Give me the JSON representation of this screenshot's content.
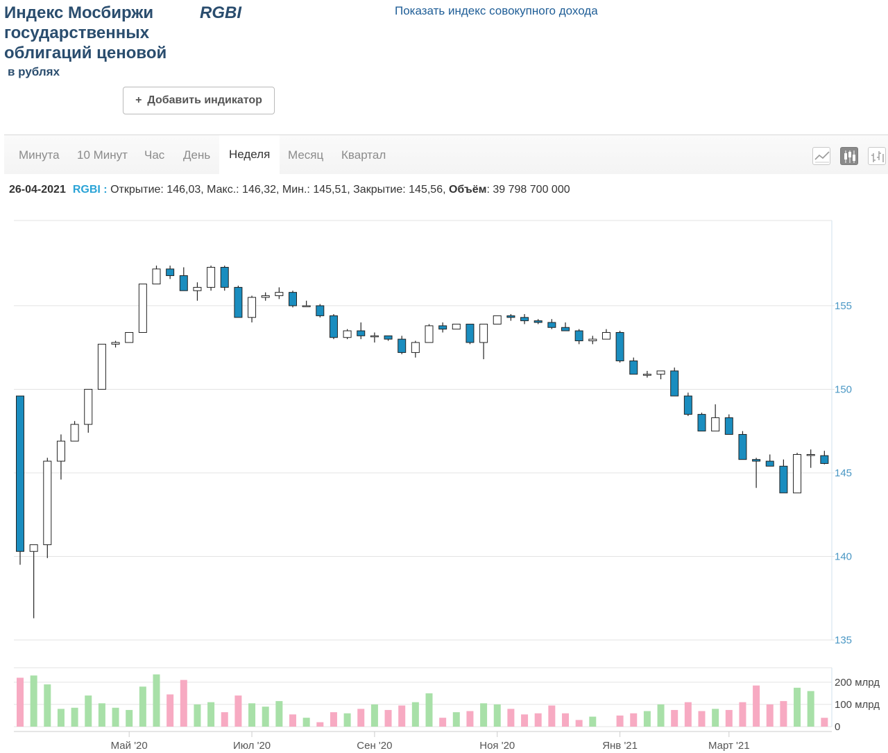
{
  "header": {
    "title": "Индекс Мосбиржи государственных облигаций ценовой",
    "ticker": "RGBI",
    "subtitle": "в рублях",
    "total_return_link": "Показать индекс совокупного дохода",
    "add_indicator_label": "Добавить индикатор"
  },
  "tabs": [
    "Минута",
    "10 Минут",
    "Час",
    "День",
    "Неделя",
    "Месяц",
    "Квартал"
  ],
  "active_tab": "Неделя",
  "chart_types": [
    "line-chart-icon",
    "candlestick-chart-icon",
    "ohlc-bar-chart-icon"
  ],
  "active_chart_type": "candlestick-chart-icon",
  "info": {
    "date": "26-04-2021",
    "symbol": "RGBI :",
    "text": " Открытие: 146,03, Макс.: 146,32, Мин.: 145,51, Закрытие: 145,56, ",
    "volume_label": "Объём",
    "volume_value": ": 39 798 700 000"
  },
  "colors": {
    "down_fill": "#1a8dbf",
    "up_fill": "#ffffff",
    "candle_stroke": "#222222",
    "vol_up": "#a8e0a8",
    "vol_down": "#f7aac2",
    "grid": "#e3e3e3",
    "axis_label": "#4a97c4"
  },
  "chart_data": {
    "type": "candlestick",
    "title": "",
    "interval": "week",
    "y_axis": {
      "ticks": [
        135,
        140,
        145,
        150,
        155
      ],
      "range": [
        135,
        160.1
      ]
    },
    "volume_axis": {
      "ticks": [
        0,
        100,
        200
      ],
      "tick_labels": [
        "0",
        "100 млрд",
        "200 млрд"
      ],
      "unit": "млрд",
      "range": [
        0,
        265
      ]
    },
    "x_axis": {
      "tick_labels": [
        "Май '20",
        "Июл '20",
        "Сен '20",
        "Ноя '20",
        "Янв '21",
        "Март '21"
      ],
      "tick_candle_index": [
        8,
        17,
        26,
        35,
        44,
        52
      ]
    },
    "candles": [
      {
        "o": 149.6,
        "h": 149.6,
        "l": 139.5,
        "c": 140.3,
        "v": 220
      },
      {
        "o": 140.3,
        "h": 140.7,
        "l": 136.3,
        "c": 140.7,
        "v": 230
      },
      {
        "o": 140.7,
        "h": 145.9,
        "l": 139.9,
        "c": 145.7,
        "v": 190
      },
      {
        "o": 145.7,
        "h": 147.3,
        "l": 144.6,
        "c": 146.9,
        "v": 80
      },
      {
        "o": 146.9,
        "h": 148.1,
        "l": 146.9,
        "c": 147.9,
        "v": 85
      },
      {
        "o": 147.9,
        "h": 150.0,
        "l": 147.4,
        "c": 150.0,
        "v": 140
      },
      {
        "o": 150.0,
        "h": 152.7,
        "l": 150.0,
        "c": 152.7,
        "v": 105
      },
      {
        "o": 152.7,
        "h": 152.9,
        "l": 152.5,
        "c": 152.8,
        "v": 85
      },
      {
        "o": 152.8,
        "h": 153.4,
        "l": 152.8,
        "c": 153.4,
        "v": 75
      },
      {
        "o": 153.4,
        "h": 156.3,
        "l": 153.4,
        "c": 156.3,
        "v": 180
      },
      {
        "o": 156.3,
        "h": 157.4,
        "l": 156.3,
        "c": 157.2,
        "v": 235
      },
      {
        "o": 157.2,
        "h": 157.4,
        "l": 156.6,
        "c": 156.8,
        "v": 145
      },
      {
        "o": 156.8,
        "h": 157.3,
        "l": 155.9,
        "c": 155.9,
        "v": 210
      },
      {
        "o": 155.9,
        "h": 156.4,
        "l": 155.3,
        "c": 156.1,
        "v": 100
      },
      {
        "o": 156.1,
        "h": 157.4,
        "l": 155.9,
        "c": 157.3,
        "v": 110
      },
      {
        "o": 157.3,
        "h": 157.4,
        "l": 155.9,
        "c": 156.1,
        "v": 65
      },
      {
        "o": 156.1,
        "h": 156.2,
        "l": 154.3,
        "c": 154.3,
        "v": 140
      },
      {
        "o": 154.3,
        "h": 155.6,
        "l": 154.0,
        "c": 155.5,
        "v": 105
      },
      {
        "o": 155.5,
        "h": 155.8,
        "l": 155.3,
        "c": 155.6,
        "v": 90
      },
      {
        "o": 155.6,
        "h": 156.1,
        "l": 155.4,
        "c": 155.8,
        "v": 115
      },
      {
        "o": 155.8,
        "h": 155.9,
        "l": 154.9,
        "c": 155.0,
        "v": 55
      },
      {
        "o": 155.0,
        "h": 155.3,
        "l": 155.0,
        "c": 155.0,
        "v": 40
      },
      {
        "o": 155.0,
        "h": 155.1,
        "l": 154.3,
        "c": 154.4,
        "v": 20
      },
      {
        "o": 154.4,
        "h": 154.5,
        "l": 153.0,
        "c": 153.1,
        "v": 65
      },
      {
        "o": 153.1,
        "h": 153.6,
        "l": 153.0,
        "c": 153.5,
        "v": 60
      },
      {
        "o": 153.5,
        "h": 154.0,
        "l": 153.0,
        "c": 153.2,
        "v": 80
      },
      {
        "o": 153.2,
        "h": 153.4,
        "l": 152.8,
        "c": 153.2,
        "v": 100
      },
      {
        "o": 153.2,
        "h": 153.2,
        "l": 152.9,
        "c": 153.0,
        "v": 75
      },
      {
        "o": 153.0,
        "h": 153.2,
        "l": 152.1,
        "c": 152.2,
        "v": 95
      },
      {
        "o": 152.2,
        "h": 152.9,
        "l": 151.9,
        "c": 152.8,
        "v": 110
      },
      {
        "o": 152.8,
        "h": 153.9,
        "l": 152.8,
        "c": 153.8,
        "v": 150
      },
      {
        "o": 153.8,
        "h": 154.0,
        "l": 153.4,
        "c": 153.6,
        "v": 40
      },
      {
        "o": 153.6,
        "h": 153.9,
        "l": 153.6,
        "c": 153.9,
        "v": 65
      },
      {
        "o": 153.9,
        "h": 153.9,
        "l": 152.7,
        "c": 152.8,
        "v": 70
      },
      {
        "o": 152.8,
        "h": 153.9,
        "l": 151.8,
        "c": 153.9,
        "v": 105
      },
      {
        "o": 153.9,
        "h": 154.4,
        "l": 153.9,
        "c": 154.4,
        "v": 100
      },
      {
        "o": 154.4,
        "h": 154.5,
        "l": 154.1,
        "c": 154.3,
        "v": 80
      },
      {
        "o": 154.3,
        "h": 154.5,
        "l": 153.9,
        "c": 154.1,
        "v": 55
      },
      {
        "o": 154.1,
        "h": 154.2,
        "l": 153.9,
        "c": 154.0,
        "v": 60
      },
      {
        "o": 154.0,
        "h": 154.2,
        "l": 153.6,
        "c": 153.7,
        "v": 95
      },
      {
        "o": 153.7,
        "h": 154.0,
        "l": 153.5,
        "c": 153.5,
        "v": 60
      },
      {
        "o": 153.5,
        "h": 153.6,
        "l": 152.7,
        "c": 152.9,
        "v": 30
      },
      {
        "o": 152.9,
        "h": 153.2,
        "l": 152.7,
        "c": 153.0,
        "v": 45
      },
      {
        "o": 153.0,
        "h": 153.6,
        "l": 153.0,
        "c": 153.4,
        "v": 0
      },
      {
        "o": 153.4,
        "h": 153.5,
        "l": 151.6,
        "c": 151.7,
        "v": 50
      },
      {
        "o": 151.7,
        "h": 151.9,
        "l": 150.9,
        "c": 150.9,
        "v": 60
      },
      {
        "o": 150.9,
        "h": 151.1,
        "l": 150.7,
        "c": 150.9,
        "v": 70
      },
      {
        "o": 150.9,
        "h": 151.1,
        "l": 150.6,
        "c": 151.1,
        "v": 100
      },
      {
        "o": 151.1,
        "h": 151.3,
        "l": 149.6,
        "c": 149.6,
        "v": 75
      },
      {
        "o": 149.6,
        "h": 149.8,
        "l": 148.4,
        "c": 148.5,
        "v": 110
      },
      {
        "o": 148.5,
        "h": 148.6,
        "l": 147.5,
        "c": 147.5,
        "v": 70
      },
      {
        "o": 147.5,
        "h": 149.1,
        "l": 147.5,
        "c": 148.3,
        "v": 80
      },
      {
        "o": 148.3,
        "h": 148.5,
        "l": 147.3,
        "c": 147.3,
        "v": 75
      },
      {
        "o": 147.3,
        "h": 147.5,
        "l": 145.8,
        "c": 145.8,
        "v": 110
      },
      {
        "o": 145.8,
        "h": 145.9,
        "l": 144.1,
        "c": 145.7,
        "v": 185
      },
      {
        "o": 145.7,
        "h": 146.1,
        "l": 145.4,
        "c": 145.4,
        "v": 100
      },
      {
        "o": 145.4,
        "h": 145.8,
        "l": 143.8,
        "c": 143.8,
        "v": 115
      },
      {
        "o": 143.8,
        "h": 146.2,
        "l": 143.8,
        "c": 146.1,
        "v": 175
      },
      {
        "o": 146.1,
        "h": 146.4,
        "l": 145.3,
        "c": 146.1,
        "v": 160
      },
      {
        "o": 146.03,
        "h": 146.32,
        "l": 145.51,
        "c": 145.56,
        "v": 39.8
      }
    ]
  }
}
